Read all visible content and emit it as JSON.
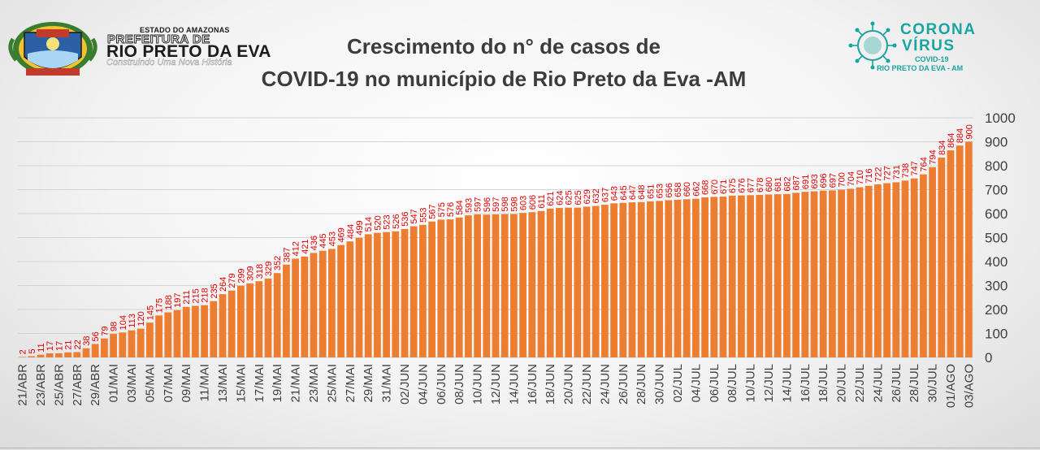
{
  "header": {
    "state": "ESTADO DO AMAZONAS",
    "prefeitura": "PREFEITURA DE",
    "city": "RIO PRETO DA EVA",
    "slogan": "Construindo Uma Nova História",
    "title_line1": "Crescimento do n° de casos de",
    "title_line2": "COVID-19 no município de Rio Preto da Eva -AM",
    "corona_line1": "CORONA",
    "corona_line2": "VÍRUS",
    "corona_line3": "COVID-19",
    "corona_line4": "RIO PRETO DA EVA - AM"
  },
  "colors": {
    "bar": "#ed7d31",
    "label": "#e00000",
    "grid": "#d4d4d4",
    "axis_text": "#404040",
    "teal": "#1aa5a0"
  },
  "icons": [
    "municipal-coat-of-arms-icon",
    "coronavirus-logo-icon"
  ],
  "chart_data": {
    "type": "bar",
    "title": "Crescimento do n° de casos de COVID-19 no município de Rio Preto da Eva -AM",
    "xlabel": "",
    "ylabel": "",
    "ylim": [
      0,
      1000
    ],
    "yticks": [
      0,
      100,
      200,
      300,
      400,
      500,
      600,
      700,
      800,
      900,
      1000
    ],
    "y_axis_side": "right",
    "grid": true,
    "data_labels": true,
    "x_label_every": 2,
    "categories": [
      "21/ABR",
      "22/ABR",
      "23/ABR",
      "24/ABR",
      "25/ABR",
      "26/ABR",
      "27/ABR",
      "28/ABR",
      "29/ABR",
      "30/ABR",
      "01/MAI",
      "02/MAI",
      "03/MAI",
      "04/MAI",
      "05/MAI",
      "06/MAI",
      "07/MAI",
      "08/MAI",
      "09/MAI",
      "10/MAI",
      "11/MAI",
      "12/MAI",
      "13/MAI",
      "14/MAI",
      "15/MAI",
      "16/MAI",
      "17/MAI",
      "18/MAI",
      "19/MAI",
      "20/MAI",
      "21/MAI",
      "22/MAI",
      "23/MAI",
      "24/MAI",
      "25/MAI",
      "26/MAI",
      "27/MAI",
      "28/MAI",
      "29/MAI",
      "30/MAI",
      "31/MAI",
      "01/JUN",
      "02/JUN",
      "03/JUN",
      "04/JUN",
      "05/JUN",
      "06/JUN",
      "07/JUN",
      "08/JUN",
      "09/JUN",
      "10/JUN",
      "11/JUN",
      "12/JUN",
      "13/JUN",
      "14/JUN",
      "15/JUN",
      "16/JUN",
      "17/JUN",
      "18/JUN",
      "19/JUN",
      "20/JUN",
      "21/JUN",
      "22/JUN",
      "23/JUN",
      "24/JUN",
      "25/JUN",
      "26/JUN",
      "27/JUN",
      "28/JUN",
      "29/JUN",
      "30/JUN",
      "01/JUL",
      "02/JUL",
      "03/JUL",
      "04/JUL",
      "05/JUL",
      "06/JUL",
      "07/JUL",
      "08/JUL",
      "09/JUL",
      "10/JUL",
      "11/JUL",
      "12/JUL",
      "13/JUL",
      "14/JUL",
      "15/JUL",
      "16/JUL",
      "17/JUL",
      "18/JUL",
      "19/JUL",
      "20/JUL",
      "21/JUL",
      "22/JUL",
      "23/JUL",
      "24/JUL",
      "25/JUL",
      "26/JUL",
      "27/JUL",
      "28/JUL",
      "29/JUL",
      "30/JUL",
      "31/JUL",
      "01/AGO",
      "02/AGO",
      "03/AGO"
    ],
    "values": [
      2,
      5,
      11,
      17,
      17,
      21,
      22,
      38,
      56,
      79,
      98,
      104,
      113,
      120,
      145,
      175,
      188,
      197,
      211,
      215,
      218,
      235,
      264,
      279,
      299,
      309,
      318,
      329,
      352,
      387,
      412,
      421,
      436,
      445,
      453,
      469,
      484,
      499,
      514,
      520,
      523,
      526,
      536,
      547,
      553,
      567,
      575,
      576,
      584,
      593,
      597,
      596,
      597,
      598,
      598,
      603,
      606,
      611,
      621,
      624,
      625,
      625,
      629,
      632,
      637,
      643,
      645,
      647,
      648,
      651,
      653,
      656,
      658,
      660,
      662,
      668,
      670,
      671,
      675,
      676,
      677,
      678,
      680,
      681,
      682,
      687,
      691,
      693,
      696,
      697,
      700,
      704,
      710,
      716,
      722,
      727,
      731,
      738,
      747,
      764,
      794,
      834,
      864,
      884,
      900
    ]
  }
}
